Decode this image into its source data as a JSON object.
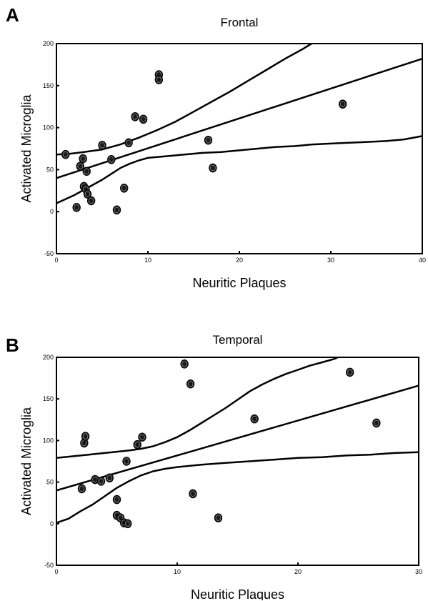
{
  "chart_data": [
    {
      "panel": "A",
      "type": "scatter",
      "title": "Frontal",
      "xlabel": "Neuritic Plaques",
      "ylabel": "Activated Microglia",
      "xlim": [
        0,
        40
      ],
      "ylim": [
        -50,
        200
      ],
      "xticks": [
        "0",
        "10",
        "20",
        "30",
        "40"
      ],
      "yticks": [
        "-50",
        "0",
        "50",
        "100",
        "150",
        "200"
      ],
      "grid": false,
      "points": [
        {
          "x": 1.0,
          "y": 68
        },
        {
          "x": 2.2,
          "y": 5
        },
        {
          "x": 2.6,
          "y": 54
        },
        {
          "x": 2.9,
          "y": 63
        },
        {
          "x": 3.0,
          "y": 30
        },
        {
          "x": 3.2,
          "y": 27
        },
        {
          "x": 3.3,
          "y": 48
        },
        {
          "x": 3.4,
          "y": 21
        },
        {
          "x": 3.8,
          "y": 13
        },
        {
          "x": 5.0,
          "y": 79
        },
        {
          "x": 6.0,
          "y": 62
        },
        {
          "x": 6.6,
          "y": 2
        },
        {
          "x": 7.4,
          "y": 28
        },
        {
          "x": 7.9,
          "y": 82
        },
        {
          "x": 8.6,
          "y": 113
        },
        {
          "x": 9.5,
          "y": 110
        },
        {
          "x": 11.2,
          "y": 163
        },
        {
          "x": 11.2,
          "y": 157
        },
        {
          "x": 16.6,
          "y": 85
        },
        {
          "x": 17.1,
          "y": 52
        },
        {
          "x": 31.3,
          "y": 128
        }
      ],
      "regression": {
        "intercept": 40,
        "slope": 3.55
      },
      "upper_band": [
        [
          0,
          68
        ],
        [
          1.5,
          69
        ],
        [
          3,
          71
        ],
        [
          5,
          74
        ],
        [
          7,
          80
        ],
        [
          9,
          88
        ],
        [
          11,
          97
        ],
        [
          13,
          107
        ],
        [
          15,
          119
        ],
        [
          17,
          131
        ],
        [
          19,
          143
        ],
        [
          21,
          156
        ],
        [
          23,
          169
        ],
        [
          25,
          182
        ],
        [
          27,
          194
        ],
        [
          27.9,
          200
        ]
      ],
      "lower_band": [
        [
          0,
          10
        ],
        [
          1,
          15
        ],
        [
          2,
          20
        ],
        [
          3,
          26
        ],
        [
          4,
          32
        ],
        [
          5,
          38
        ],
        [
          6,
          45
        ],
        [
          7,
          52
        ],
        [
          8,
          57
        ],
        [
          9,
          61
        ],
        [
          10,
          64
        ],
        [
          12,
          66
        ],
        [
          14,
          68
        ],
        [
          16,
          70
        ],
        [
          18,
          71
        ],
        [
          20,
          73
        ],
        [
          22,
          75
        ],
        [
          24,
          77
        ],
        [
          26,
          78
        ],
        [
          28,
          80
        ],
        [
          30,
          81
        ],
        [
          32,
          82
        ],
        [
          34,
          83
        ],
        [
          36,
          84
        ],
        [
          38,
          86
        ],
        [
          40,
          90
        ]
      ]
    },
    {
      "panel": "B",
      "type": "scatter",
      "title": "Temporal",
      "xlabel": "Neuritic Plaques",
      "ylabel": "Activated Microglia",
      "xlim": [
        0,
        30
      ],
      "ylim": [
        -50,
        200
      ],
      "xticks": [
        "0",
        "10",
        "20",
        "30"
      ],
      "yticks": [
        "-50",
        "0",
        "50",
        "100",
        "150",
        "200"
      ],
      "grid": false,
      "points": [
        {
          "x": 2.1,
          "y": 42
        },
        {
          "x": 2.3,
          "y": 97
        },
        {
          "x": 2.4,
          "y": 105
        },
        {
          "x": 3.2,
          "y": 53
        },
        {
          "x": 3.7,
          "y": 51
        },
        {
          "x": 4.4,
          "y": 55
        },
        {
          "x": 5.0,
          "y": 29
        },
        {
          "x": 5.0,
          "y": 10
        },
        {
          "x": 5.3,
          "y": 7
        },
        {
          "x": 5.6,
          "y": 1
        },
        {
          "x": 5.9,
          "y": 0
        },
        {
          "x": 5.8,
          "y": 75
        },
        {
          "x": 6.7,
          "y": 95
        },
        {
          "x": 7.1,
          "y": 104
        },
        {
          "x": 10.6,
          "y": 192
        },
        {
          "x": 11.1,
          "y": 168
        },
        {
          "x": 11.3,
          "y": 36
        },
        {
          "x": 13.4,
          "y": 7
        },
        {
          "x": 16.4,
          "y": 126
        },
        {
          "x": 24.3,
          "y": 182
        },
        {
          "x": 26.5,
          "y": 121
        }
      ],
      "regression": {
        "intercept": 40,
        "slope": 4.2
      },
      "upper_band": [
        [
          0,
          79
        ],
        [
          2,
          82
        ],
        [
          4,
          85
        ],
        [
          6,
          88
        ],
        [
          7,
          90
        ],
        [
          8,
          93
        ],
        [
          9,
          98
        ],
        [
          10,
          104
        ],
        [
          11,
          112
        ],
        [
          12,
          121
        ],
        [
          13,
          130
        ],
        [
          14,
          139
        ],
        [
          15,
          149
        ],
        [
          16,
          159
        ],
        [
          17,
          167
        ],
        [
          18,
          174
        ],
        [
          19,
          180
        ],
        [
          20,
          185
        ],
        [
          21,
          190
        ],
        [
          22,
          194
        ],
        [
          23,
          198
        ],
        [
          23.3,
          200
        ]
      ],
      "lower_band": [
        [
          0,
          1
        ],
        [
          1,
          6
        ],
        [
          2,
          15
        ],
        [
          3,
          23
        ],
        [
          4,
          33
        ],
        [
          5,
          43
        ],
        [
          6,
          51
        ],
        [
          7,
          58
        ],
        [
          8,
          63
        ],
        [
          9,
          66
        ],
        [
          10,
          68
        ],
        [
          12,
          71
        ],
        [
          14,
          73
        ],
        [
          16,
          75
        ],
        [
          18,
          77
        ],
        [
          20,
          79
        ],
        [
          22,
          80
        ],
        [
          24,
          82
        ],
        [
          26,
          83
        ],
        [
          28,
          85
        ],
        [
          30,
          86
        ]
      ]
    }
  ]
}
